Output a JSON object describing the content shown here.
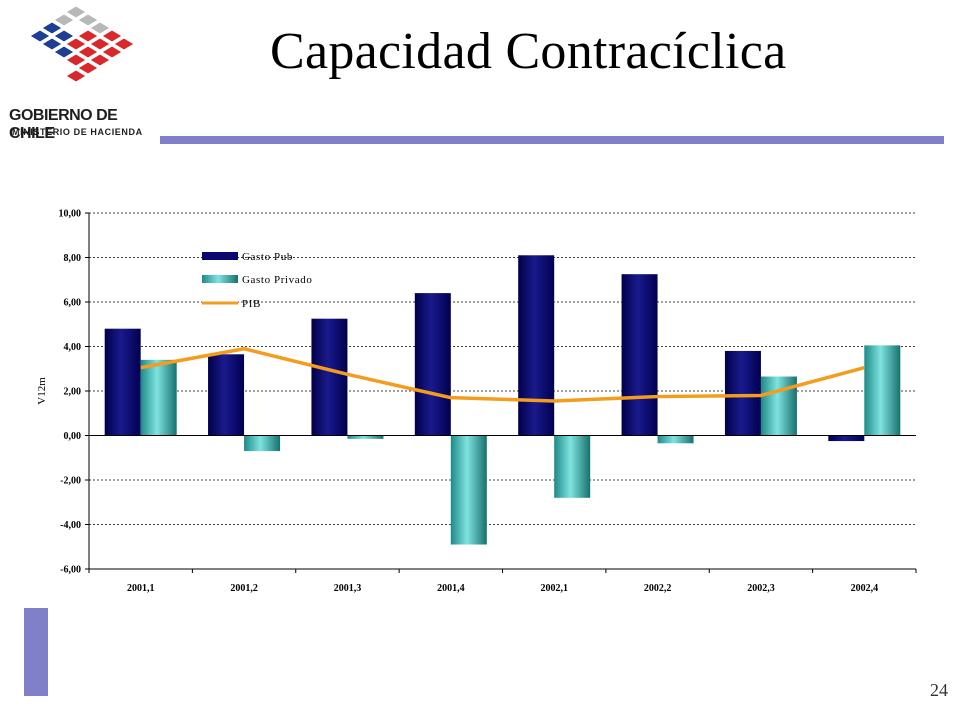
{
  "header": {
    "title": "Capacidad Contracíclica",
    "logo_line1": "GOBIERNO DE CHILE",
    "logo_line2": "MINISTERIO DE HACIENDA"
  },
  "footer": {
    "page_number": "24"
  },
  "colors": {
    "gasto_pub": "#0a0a6e",
    "gasto_privado": "#2fb3b0",
    "pib": "#f39c1e",
    "rule": "#8080c8"
  },
  "chart_data": {
    "type": "bar",
    "categories": [
      "2001,1",
      "2001,2",
      "2001,3",
      "2001,4",
      "2002,1",
      "2002,2",
      "2002,3",
      "2002,4"
    ],
    "series": [
      {
        "name": "Gasto Pub",
        "type": "bar",
        "values": [
          4.8,
          3.65,
          5.25,
          6.4,
          8.1,
          7.25,
          3.8,
          -0.25
        ]
      },
      {
        "name": "Gasto Privado",
        "type": "bar",
        "values": [
          3.4,
          -0.7,
          -0.15,
          -4.9,
          -2.8,
          -0.35,
          2.65,
          4.05
        ]
      },
      {
        "name": "PIB",
        "type": "line",
        "values": [
          3.05,
          3.9,
          2.75,
          1.7,
          1.55,
          1.75,
          1.8,
          3.05
        ]
      }
    ],
    "ylabel": "V12m",
    "xlabel": "",
    "ylim": [
      -6,
      10
    ],
    "yticks": [
      "10,00",
      "8,00",
      "6,00",
      "4,00",
      "2,00",
      "0,00",
      "-2,00",
      "-4,00",
      "-6,00"
    ],
    "grid": true,
    "legend": "top-left"
  }
}
